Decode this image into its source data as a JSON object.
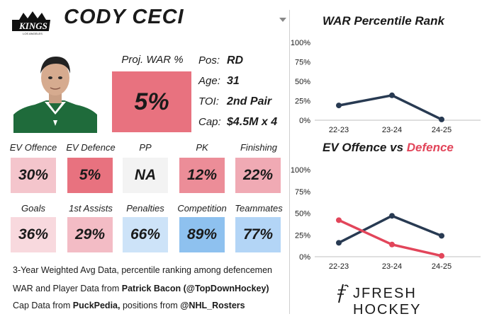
{
  "team": {
    "logo_text": "KINGS",
    "logo_small": "LOS ANGELES"
  },
  "player": {
    "name": "CODY CECI"
  },
  "projection": {
    "label": "Proj. WAR %",
    "value": "5%"
  },
  "info": [
    {
      "key": "Pos:",
      "value": "RD"
    },
    {
      "key": "Age:",
      "value": "31"
    },
    {
      "key": "TOI:",
      "value": "2nd Pair"
    },
    {
      "key": "Cap:",
      "value": "$4.5M x 4"
    }
  ],
  "stats_row1": [
    {
      "label": "EV Offence",
      "value": "30%",
      "color": "#f4c5cc"
    },
    {
      "label": "EV Defence",
      "value": "5%",
      "color": "#e8727f"
    },
    {
      "label": "PP",
      "value": "NA",
      "color": "#f3f3f3"
    },
    {
      "label": "PK",
      "value": "12%",
      "color": "#ec8d98"
    },
    {
      "label": "Finishing",
      "value": "22%",
      "color": "#f0aab4"
    }
  ],
  "stats_row2": [
    {
      "label": "Goals",
      "value": "36%",
      "color": "#f8d9de"
    },
    {
      "label": "1st Assists",
      "value": "29%",
      "color": "#f3bcc5"
    },
    {
      "label": "Penalties",
      "value": "66%",
      "color": "#cde3f8"
    },
    {
      "label": "Competition",
      "value": "89%",
      "color": "#8ec1ef"
    },
    {
      "label": "Teammates",
      "value": "77%",
      "color": "#b3d5f6"
    }
  ],
  "footnotes": {
    "line1": "3-Year Weighted Avg Data, percentile ranking among defencemen",
    "line2_prefix": "WAR and Player Data from ",
    "line2_bold": "Patrick Bacon (@TopDownHockey)",
    "line3_bold1": "PuckPedia,",
    "line3_prefix": "Cap Data from ",
    "line3_mid": " positions from ",
    "line3_bold2": "@NHL_Rosters"
  },
  "brand": {
    "text": "JFRESH HOCKEY"
  },
  "chart_data": [
    {
      "type": "line",
      "title": "WAR Percentile Rank",
      "categories": [
        "22-23",
        "23-24",
        "24-25"
      ],
      "ylim": [
        0,
        100
      ],
      "yticks": [
        "0%",
        "25%",
        "50%",
        "75%",
        "100%"
      ],
      "grid": false,
      "series": [
        {
          "values": [
            19,
            32,
            1
          ],
          "color": "#283a52"
        }
      ]
    },
    {
      "type": "line",
      "title_part1": "EV Offence vs ",
      "title_part2": "Defence",
      "title_part2_color": "#e2455a",
      "categories": [
        "22-23",
        "23-24",
        "24-25"
      ],
      "ylim": [
        0,
        100
      ],
      "yticks": [
        "0%",
        "25%",
        "50%",
        "75%",
        "100%"
      ],
      "grid": false,
      "series": [
        {
          "name": "EV Offence",
          "values": [
            16,
            47,
            24
          ],
          "color": "#283a52"
        },
        {
          "name": "Defence",
          "values": [
            42,
            14,
            1
          ],
          "color": "#e2455a"
        }
      ]
    }
  ]
}
